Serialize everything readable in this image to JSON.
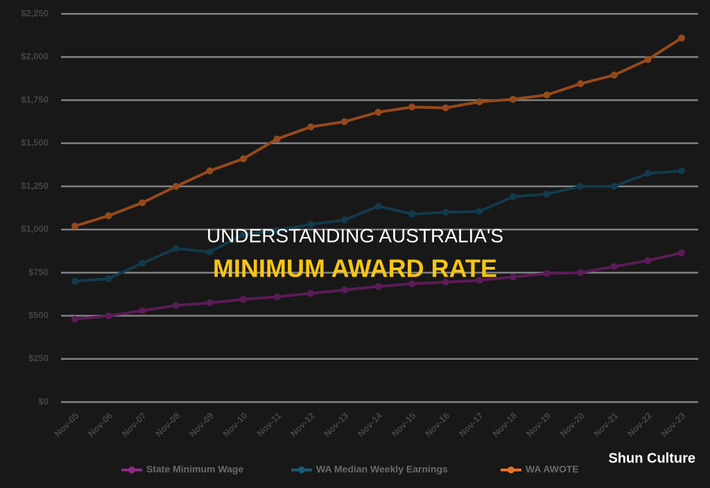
{
  "chart_data": {
    "type": "line",
    "title": [
      "UNDERSTANDING AUSTRALIA'S",
      "MINIMUM AWARD RATE"
    ],
    "watermark": "Shun Culture",
    "categories": [
      "Nov-05",
      "Nov-06",
      "Nov-07",
      "Nov-08",
      "Nov-09",
      "Nov-10",
      "Nov-11",
      "Nov-12",
      "Nov-13",
      "Nov-14",
      "Nov-15",
      "Nov-16",
      "Nov-17",
      "Nov-18",
      "Nov-19",
      "Nov-20",
      "Nov-21",
      "Nov-22",
      "Nov-23"
    ],
    "series": [
      {
        "name": "State Minimum Wage",
        "color": "#8e2a86",
        "values": [
          480,
          500,
          530,
          560,
          575,
          595,
          610,
          630,
          650,
          670,
          685,
          695,
          705,
          725,
          745,
          750,
          785,
          820,
          865
        ]
      },
      {
        "name": "WA Median Weekly Earnings",
        "color": "#1c5a75",
        "values": [
          700,
          715,
          805,
          890,
          870,
          970,
          995,
          1030,
          1055,
          1135,
          1090,
          1100,
          1105,
          1190,
          1205,
          1250,
          1250,
          1325,
          1340
        ]
      },
      {
        "name": "WA AWOTE",
        "color": "#e8702a",
        "values": [
          1020,
          1080,
          1155,
          1250,
          1340,
          1410,
          1525,
          1595,
          1625,
          1680,
          1710,
          1705,
          1740,
          1755,
          1780,
          1845,
          1895,
          1985,
          2110
        ]
      }
    ],
    "ylim": [
      0,
      2250
    ],
    "yticks": [
      {
        "value": 0,
        "label": "$0"
      },
      {
        "value": 250,
        "label": "$250"
      },
      {
        "value": 500,
        "label": "$500"
      },
      {
        "value": 750,
        "label": "$750"
      },
      {
        "value": 1000,
        "label": "$1,000"
      },
      {
        "value": 1250,
        "label": "$1,250"
      },
      {
        "value": 1500,
        "label": "$1,500"
      },
      {
        "value": 1750,
        "label": "$1,750"
      },
      {
        "value": 2000,
        "label": "$2,000"
      },
      {
        "value": 2250,
        "label": "$2,250"
      }
    ],
    "grid": true,
    "legend": "bottom"
  }
}
